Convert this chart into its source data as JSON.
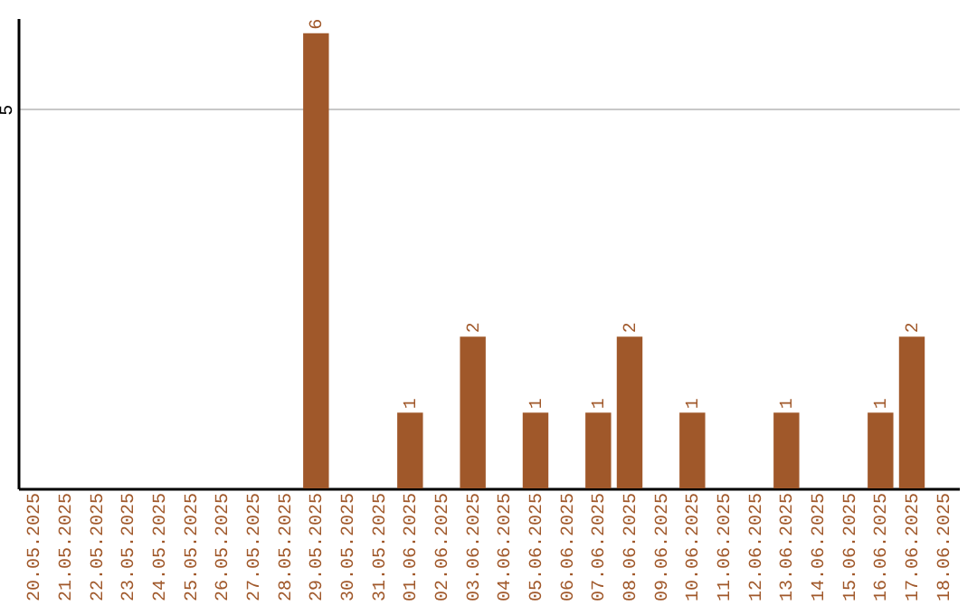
{
  "chart_data": {
    "type": "bar",
    "categories": [
      "20.05.2025",
      "21.05.2025",
      "22.05.2025",
      "23.05.2025",
      "24.05.2025",
      "25.05.2025",
      "26.05.2025",
      "27.05.2025",
      "28.05.2025",
      "29.05.2025",
      "30.05.2025",
      "31.05.2025",
      "01.06.2025",
      "02.06.2025",
      "03.06.2025",
      "04.06.2025",
      "05.06.2025",
      "06.06.2025",
      "07.06.2025",
      "08.06.2025",
      "09.06.2025",
      "10.06.2025",
      "11.06.2025",
      "12.06.2025",
      "13.06.2025",
      "14.06.2025",
      "15.06.2025",
      "16.06.2025",
      "17.06.2025",
      "18.06.2025"
    ],
    "values": [
      0,
      0,
      0,
      0,
      0,
      0,
      0,
      0,
      0,
      6,
      0,
      0,
      1,
      0,
      2,
      0,
      1,
      0,
      1,
      2,
      0,
      1,
      0,
      0,
      1,
      0,
      0,
      1,
      2,
      0
    ],
    "value_labels": [
      null,
      null,
      null,
      null,
      null,
      null,
      null,
      null,
      null,
      "6",
      null,
      null,
      "1",
      null,
      "2",
      null,
      "1",
      null,
      "1",
      "2",
      null,
      "1",
      null,
      null,
      "1",
      null,
      null,
      "1",
      "2",
      null
    ],
    "color": "#a0582a",
    "ylim": [
      0,
      6.2
    ],
    "yticks": [
      5
    ],
    "grid": "y"
  }
}
